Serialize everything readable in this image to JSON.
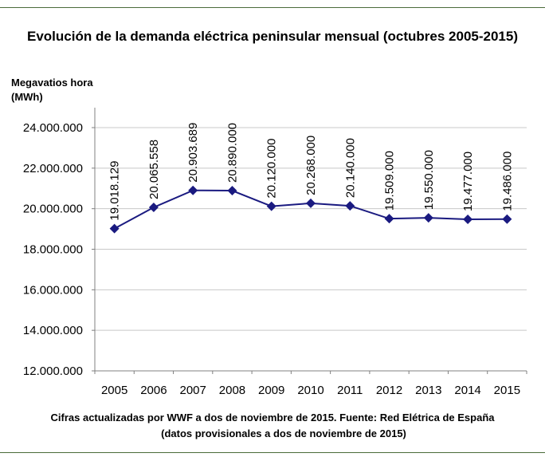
{
  "chart_data": {
    "type": "line",
    "title": "Evolución de la demanda eléctrica peninsular mensual (octubres 2005-2015)",
    "ylabel_lines": [
      "Megavatios hora",
      "(MWh)"
    ],
    "xlabel": "",
    "categories": [
      "2005",
      "2006",
      "2007",
      "2008",
      "2009",
      "2010",
      "2011",
      "2012",
      "2013",
      "2014",
      "2015"
    ],
    "values": [
      19018129,
      20065558,
      20903689,
      20890000,
      20120000,
      20268000,
      20140000,
      19509000,
      19550000,
      19477000,
      19486000
    ],
    "value_labels": [
      "19.018.129",
      "20.065.558",
      "20.903.689",
      "20.890.000",
      "20.120.000",
      "20.268.000",
      "20.140.000",
      "19.509.000",
      "19.550.000",
      "19.477.000",
      "19.486.000"
    ],
    "ylim": [
      12000000,
      24000000
    ],
    "yticks": [
      12000000,
      14000000,
      16000000,
      18000000,
      20000000,
      22000000,
      24000000
    ],
    "ytick_labels": [
      "12.000.000",
      "14.000.000",
      "16.000.000",
      "18.000.000",
      "20.000.000",
      "22.000.000",
      "24.000.000"
    ],
    "grid": true,
    "legend": "none",
    "line_color": "#1a1a80",
    "grid_color": "#c8c8c8"
  },
  "footer": {
    "line1": "Cifras actualizadas por WWF a dos de noviembre de 2015. Fuente: Red Elétrica de España",
    "line2": "(datos provisionales a dos de noviembre de 2015)"
  }
}
